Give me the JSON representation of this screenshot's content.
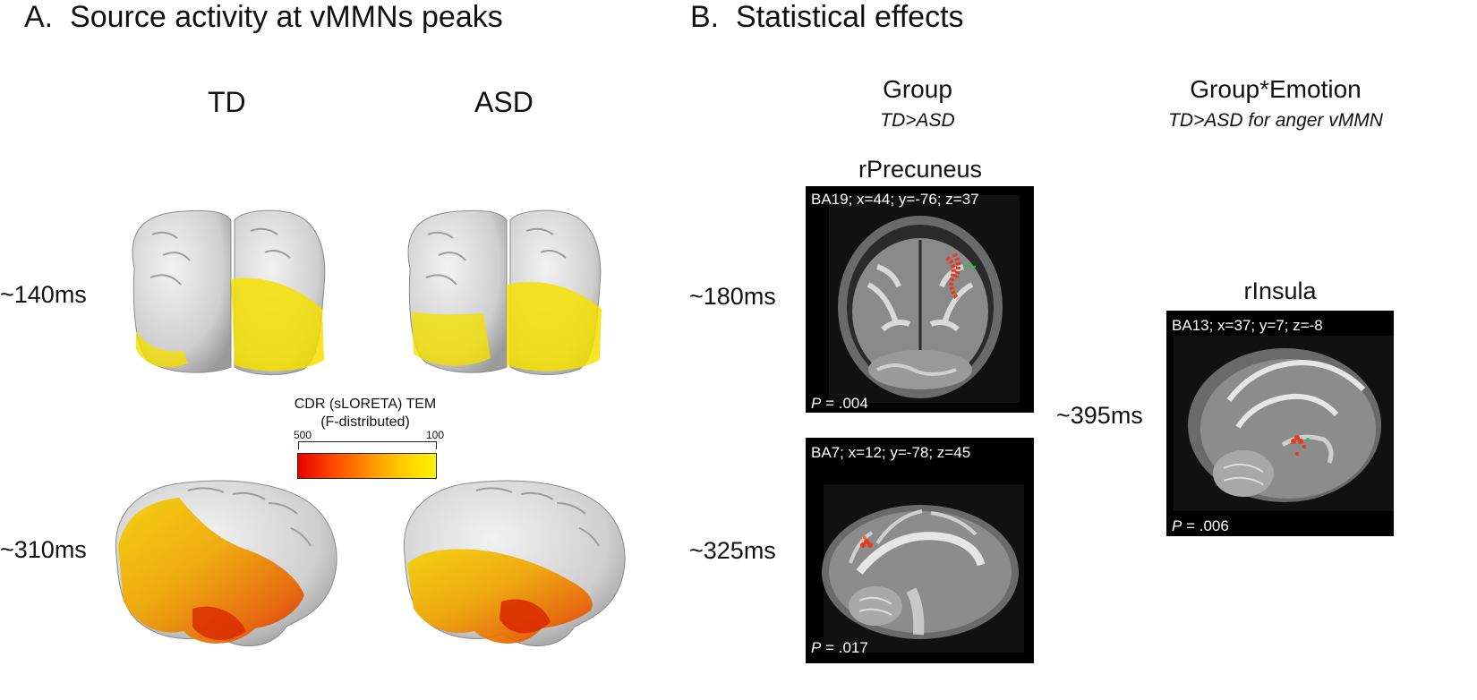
{
  "panel_a": {
    "title_letter": "A.",
    "title": "Source activity at vMMNs peaks",
    "columns": [
      "TD",
      "ASD"
    ],
    "timepoints": [
      "~140ms",
      "~310ms"
    ],
    "colorbar": {
      "title_line1": "CDR (sLORETA) TEM",
      "title_line2": "(F-distributed)",
      "tick_left": "500",
      "tick_right": "100",
      "colors": [
        "#e60000",
        "#ff9a00",
        "#fff200"
      ]
    }
  },
  "panel_b": {
    "title_letter": "B.",
    "title": "Statistical effects",
    "group": {
      "heading": "Group",
      "subheading": "TD>ASD"
    },
    "interaction": {
      "heading": "Group*Emotion",
      "subheading": "TD>ASD for anger vMMN"
    },
    "timepoints": [
      "~180ms",
      "~325ms",
      "~395ms"
    ],
    "scans": [
      {
        "region": "rPrecuneus",
        "coords": "BA19; x=44; y=-76; z=37",
        "p_label": "P",
        "p_value": "= .004"
      },
      {
        "region": "",
        "coords": "BA7; x=12; y=-78; z=45",
        "p_label": "P",
        "p_value": "= .017"
      },
      {
        "region": "rInsula",
        "coords": "BA13; x=37; y=7; z=-8",
        "p_label": "P",
        "p_value": "= .006"
      }
    ]
  }
}
